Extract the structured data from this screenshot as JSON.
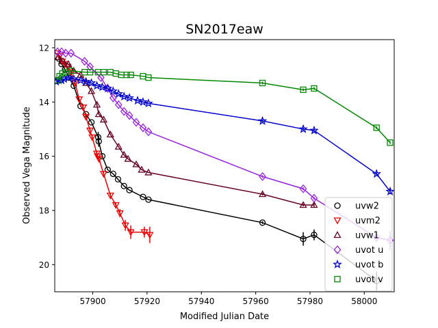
{
  "chart_data": {
    "type": "line",
    "title": "SN2017eaw",
    "xlabel": "Modified Julian Date",
    "ylabel": "Observed Vega Magnitude",
    "xlim": [
      57886,
      58011
    ],
    "ylim": [
      21,
      11.7
    ],
    "y_inverted": true,
    "xticks": [
      57900,
      57920,
      57940,
      57960,
      57980,
      58000
    ],
    "xtick_labels": [
      "57900",
      "57920",
      "57940",
      "57960",
      "57980",
      "58000"
    ],
    "yticks": [
      12,
      14,
      16,
      18,
      20
    ],
    "ytick_labels": [
      "12",
      "14",
      "16",
      "18",
      "20"
    ],
    "grid": false,
    "legend_position": "lower-right",
    "series": [
      {
        "name": "uvw2",
        "color": "#000000",
        "marker": "circle",
        "x": [
          57887.5,
          57888.5,
          57889.8,
          57891.2,
          57893.0,
          57895.5,
          57897.5,
          57899.5,
          57902.0,
          57902.2,
          57903.5,
          57905.5,
          57907.5,
          57909.3,
          57911.5,
          57913.5,
          57918.5,
          57920.5,
          57962.5,
          57977.5,
          57981.5,
          58004.5
        ],
        "y": [
          12.4,
          12.6,
          12.8,
          13.1,
          13.4,
          14.15,
          14.45,
          14.75,
          15.3,
          15.45,
          16.0,
          16.5,
          16.65,
          16.85,
          17.1,
          17.25,
          17.5,
          17.6,
          18.45,
          19.05,
          18.9,
          20.6
        ],
        "err": [
          0,
          0,
          0,
          0,
          0,
          0,
          0,
          0,
          0.2,
          0.2,
          0.05,
          0,
          0,
          0,
          0,
          0,
          0,
          0,
          0.05,
          0.25,
          0.2,
          0.35
        ]
      },
      {
        "name": "uvm2",
        "color": "#ee0000",
        "marker": "triangle-down",
        "x": [
          57887.0,
          57887.8,
          57888.8,
          57889.8,
          57890.8,
          57892.0,
          57893.5,
          57895.0,
          57896.5,
          57897.5,
          57899.0,
          57899.8,
          57901.5,
          57901.8,
          57902.3,
          57904.0,
          57906.5,
          57908.5,
          57910.0,
          57912.0,
          57914.0,
          57919.0,
          57921.0
        ],
        "y": [
          12.2,
          12.3,
          12.5,
          12.6,
          12.7,
          12.9,
          13.3,
          13.9,
          14.2,
          14.55,
          15.05,
          15.3,
          15.9,
          16.0,
          16.1,
          16.65,
          17.45,
          17.8,
          18.1,
          18.55,
          18.8,
          18.8,
          18.9
        ],
        "err": [
          0,
          0,
          0,
          0,
          0,
          0,
          0,
          0,
          0,
          0.1,
          0.1,
          0.1,
          0.1,
          0.1,
          0.1,
          0.1,
          0.1,
          0.1,
          0.15,
          0.2,
          0.25,
          0.2,
          0.3
        ]
      },
      {
        "name": "uvw1",
        "color": "#660022",
        "marker": "triangle-up",
        "x": [
          57887.2,
          57889.0,
          57891.0,
          57893.0,
          57895.5,
          57897.5,
          57899.5,
          57901.5,
          57902.2,
          57904.0,
          57906.5,
          57909.5,
          57911.5,
          57913.0,
          57916.0,
          57918.0,
          57920.5,
          57962.5,
          57977.5,
          57981.5
        ],
        "y": [
          12.35,
          12.5,
          12.6,
          12.85,
          13.0,
          13.3,
          13.6,
          14.1,
          14.45,
          14.65,
          15.2,
          15.65,
          15.95,
          16.1,
          16.3,
          16.5,
          16.6,
          17.4,
          17.8,
          17.8
        ],
        "err": [
          0,
          0,
          0,
          0,
          0,
          0,
          0,
          0.05,
          0,
          0,
          0,
          0,
          0,
          0,
          0,
          0,
          0,
          0.05,
          0.05,
          0.1
        ]
      },
      {
        "name": "uvot u",
        "color": "#9922dd",
        "marker": "diamond",
        "x": [
          57887.0,
          57888.5,
          57890.0,
          57892.0,
          57897.0,
          57899.0,
          57903.0,
          57905.5,
          57907.5,
          57909.5,
          57911.5,
          57913.5,
          57916.0,
          57918.5,
          57920.5,
          57962.5,
          57977.5,
          57981.5,
          58004.5,
          58009.5
        ],
        "y": [
          12.15,
          12.15,
          12.2,
          12.2,
          12.5,
          12.7,
          13.1,
          13.5,
          13.85,
          14.1,
          14.35,
          14.5,
          14.75,
          14.95,
          15.1,
          16.75,
          17.2,
          17.55,
          19.0,
          19.1
        ],
        "err": [
          0,
          0,
          0,
          0,
          0,
          0,
          0,
          0,
          0,
          0,
          0,
          0,
          0,
          0,
          0,
          0.05,
          0.05,
          0.05,
          0.1,
          0.35
        ]
      },
      {
        "name": "uvot b",
        "color": "#0000cc",
        "marker": "star",
        "x": [
          57886.5,
          57887.5,
          57888.5,
          57889.5,
          57891.0,
          57893.0,
          57895.5,
          57897.5,
          57899.5,
          57901.5,
          57903.5,
          57905.5,
          57907.5,
          57909.5,
          57911.5,
          57913.5,
          57916.5,
          57918.5,
          57920.5,
          57962.5,
          57977.5,
          57981.5,
          58004.5,
          58009.5
        ],
        "y": [
          13.25,
          13.2,
          13.2,
          13.15,
          13.1,
          13.15,
          13.2,
          13.25,
          13.3,
          13.4,
          13.45,
          13.5,
          13.6,
          13.7,
          13.8,
          13.85,
          13.95,
          14.0,
          14.05,
          14.7,
          15.0,
          15.05,
          16.65,
          17.3
        ],
        "err": [
          0,
          0,
          0,
          0,
          0,
          0,
          0,
          0,
          0,
          0,
          0,
          0,
          0,
          0,
          0,
          0,
          0,
          0,
          0,
          0.05,
          0.05,
          0.05,
          0.05,
          0.1
        ]
      },
      {
        "name": "uvot v",
        "color": "#008800",
        "marker": "square",
        "x": [
          57887.0,
          57887.8,
          57888.8,
          57890.0,
          57892.0,
          57897.0,
          57899.0,
          57902.0,
          57904.0,
          57906.5,
          57908.5,
          57910.5,
          57912.5,
          57914.0,
          57918.5,
          57920.5,
          57962.5,
          57977.5,
          57981.5,
          58004.5,
          58009.5
        ],
        "y": [
          13.2,
          13.05,
          12.95,
          12.9,
          12.85,
          12.9,
          12.9,
          12.9,
          12.9,
          12.9,
          12.95,
          13.0,
          13.0,
          13.0,
          13.05,
          13.1,
          13.3,
          13.55,
          13.5,
          14.95,
          15.5
        ],
        "err": [
          0,
          0,
          0,
          0,
          0,
          0,
          0,
          0,
          0,
          0,
          0,
          0,
          0,
          0,
          0,
          0,
          0.05,
          0.05,
          0.05,
          0.05,
          0.05
        ]
      }
    ]
  }
}
